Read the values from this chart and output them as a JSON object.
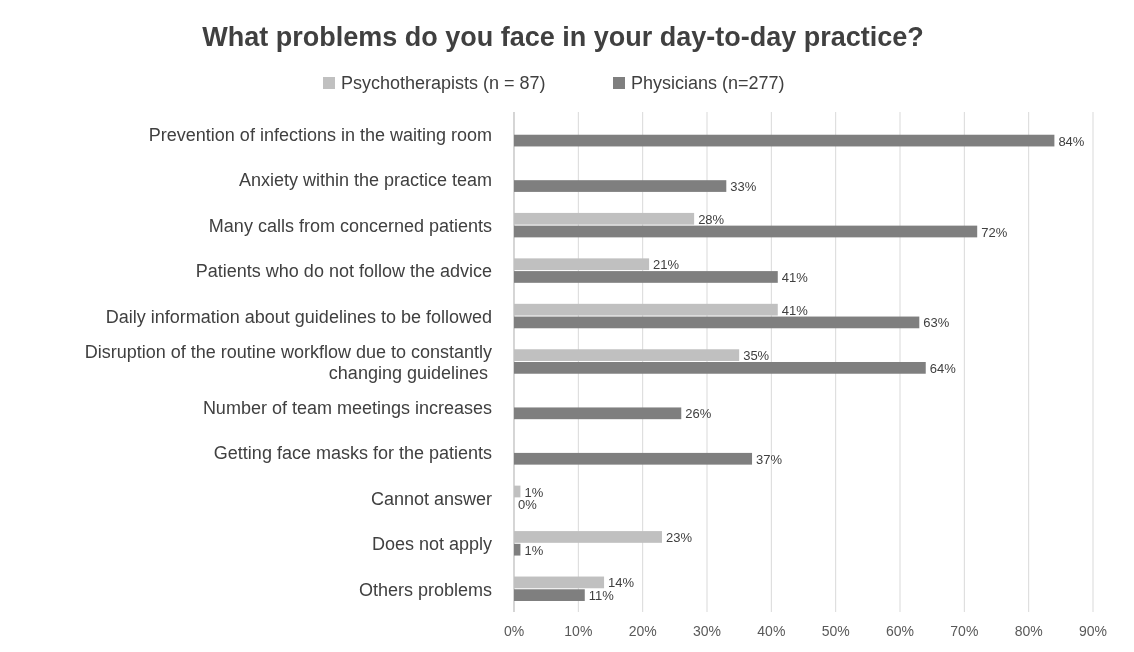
{
  "chart_data": {
    "type": "bar",
    "orientation": "horizontal",
    "title": "What problems do you face in your day-to-day practice?",
    "categories": [
      "Prevention of infections in the waiting room",
      "Anxiety within the practice team",
      "Many calls from concerned patients",
      "Patients who do not follow the advice",
      "Daily information about guidelines to be followed",
      "Disruption of the routine workflow due to constantly changing guidelines",
      "Number of team meetings increases",
      "Getting face masks for the patients",
      "Cannot answer",
      "Does not apply",
      "Others problems"
    ],
    "series": [
      {
        "name": "Psychotherapists (n = 87)",
        "color": "#c0c0c0",
        "values": [
          null,
          null,
          28,
          21,
          41,
          35,
          null,
          null,
          1,
          23,
          14
        ],
        "value_labels": [
          null,
          null,
          "28%",
          "21%",
          "41%",
          "35%",
          null,
          null,
          "1%",
          "23%",
          "14%"
        ]
      },
      {
        "name": "Physicians (n=277)",
        "color": "#7f7f7f",
        "values": [
          84,
          33,
          72,
          41,
          63,
          64,
          26,
          37,
          0,
          1,
          11
        ],
        "value_labels": [
          "84%",
          "33%",
          "72%",
          "41%",
          "63%",
          "64%",
          "26%",
          "37%",
          "0%",
          "1%",
          "11%"
        ]
      }
    ],
    "xlim": [
      0,
      90
    ],
    "xticks": [
      {
        "value": 0,
        "label": "0%"
      },
      {
        "value": 10,
        "label": "10%"
      },
      {
        "value": 20,
        "label": "20%"
      },
      {
        "value": 30,
        "label": "30%"
      },
      {
        "value": 40,
        "label": "40%"
      },
      {
        "value": 50,
        "label": "50%"
      },
      {
        "value": 60,
        "label": "60%"
      },
      {
        "value": 70,
        "label": "70%"
      },
      {
        "value": 80,
        "label": "80%"
      },
      {
        "value": 90,
        "label": "90%"
      }
    ],
    "grid": "x",
    "legend": "top"
  }
}
